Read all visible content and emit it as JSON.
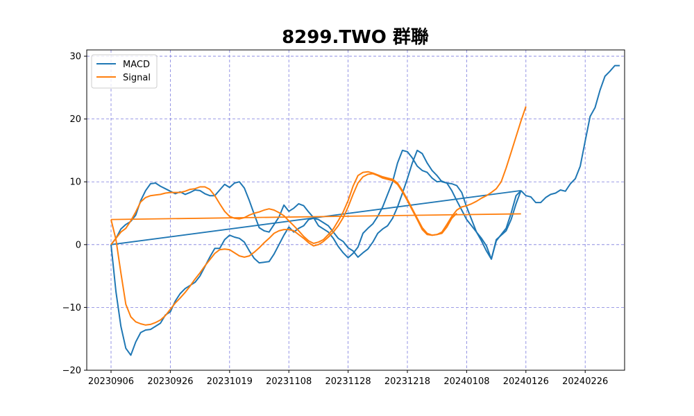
{
  "chart_data": {
    "type": "line",
    "title": "8299.TWO 群聯",
    "xlabel": "",
    "ylabel": "",
    "x_tick_labels": [
      "20230906",
      "20230926",
      "20231019",
      "20231108",
      "20231128",
      "20231218",
      "20240108",
      "20240126",
      "20240226"
    ],
    "y_ticks": [
      30,
      20,
      10,
      0,
      -10,
      -20
    ],
    "y_tick_labels": [
      "30",
      "20",
      "10",
      "0",
      "−10",
      "−20"
    ],
    "xlim": [
      -3,
      85
    ],
    "ylim": [
      -20,
      31
    ],
    "grid": true,
    "legend_position": "top-left",
    "colors": {
      "MACD": "#1f77b4",
      "Signal": "#ff7f0e",
      "grid": "#7b7bde"
    },
    "series": [
      {
        "name": "MACD",
        "x": [
          0,
          1,
          2,
          3,
          4,
          5,
          6,
          7,
          8,
          9,
          10,
          11,
          12,
          13,
          14,
          15,
          16,
          17,
          18,
          19,
          20,
          21,
          22,
          23,
          24,
          25,
          26,
          27,
          28,
          29,
          30,
          31,
          32,
          33,
          34,
          35,
          36,
          37,
          38,
          39,
          40,
          41,
          42,
          43,
          44,
          45,
          46,
          47,
          48,
          49,
          50,
          51,
          52,
          53,
          54,
          55,
          56,
          57,
          58,
          59,
          60,
          61,
          62,
          63,
          64,
          65,
          66,
          67,
          68,
          69,
          70,
          71,
          72,
          73,
          74,
          75,
          76,
          77,
          78,
          79,
          80,
          81,
          82,
          83
        ],
        "y": [
          0,
          -7.5,
          -13.0,
          -16.5,
          -17.6,
          -15.5,
          -14.0,
          -13.6,
          -13.5,
          -13.0,
          -12.5,
          -11.2,
          -10.7,
          -9.0,
          -7.8,
          -7.0,
          -6.5,
          -6.0,
          -5.0,
          -3.5,
          -2.0,
          -0.6,
          -0.6,
          0.8,
          1.5,
          1.2,
          1.0,
          0.4,
          -1.0,
          -2.2,
          -2.9,
          -2.8,
          -2.7,
          -1.5,
          0.0,
          1.5,
          2.8,
          2.0,
          2.6,
          3.0,
          4.0,
          4.2,
          4.0,
          3.5,
          3.0,
          2.0,
          1.0,
          0.5,
          -0.5,
          -1.0,
          -2.0,
          -1.3,
          -0.7,
          0.4,
          1.8,
          2.5,
          3.0,
          4.2,
          6.0,
          8.2,
          10.5,
          13.0,
          15.0,
          14.5,
          13.0,
          11.8,
          11.0,
          10.0,
          9.8,
          9.7,
          9.4,
          8.3,
          6.0,
          4.0,
          2.0,
          0.6,
          -1.0,
          -2.3,
          0.8,
          1.5,
          2.2,
          4.0,
          6.5,
          8.6
        ],
        "x2": [
          0,
          1,
          2,
          3,
          4,
          5,
          6,
          7,
          8,
          9,
          10,
          11,
          12,
          13,
          14,
          15,
          16,
          17,
          18,
          19,
          20,
          21,
          22,
          23,
          24,
          25,
          26,
          27,
          28,
          29,
          30,
          31,
          32,
          33,
          34,
          35,
          36,
          37,
          38,
          39,
          40,
          41,
          42,
          43,
          44,
          45,
          46,
          47,
          48,
          49,
          50,
          51,
          52,
          53,
          54,
          55,
          56,
          57,
          58,
          59,
          60,
          61,
          62,
          63,
          64,
          65,
          66,
          67,
          68,
          69,
          70,
          71,
          72,
          73,
          74,
          75,
          76,
          77,
          78,
          79,
          80,
          81,
          82,
          83
        ],
        "y2_note": "",
        "y2": [
          0,
          1.0,
          2.5,
          3.2,
          3.7,
          4.7,
          7.0,
          8.6,
          9.7,
          9.8,
          9.3,
          8.9,
          8.5,
          8.1,
          8.4,
          8.0,
          8.3,
          8.7,
          8.6,
          8.1,
          7.8,
          7.8,
          8.7,
          9.6,
          9.1,
          9.8,
          10.0,
          9.0,
          7.0,
          4.8,
          2.7,
          2.2,
          2.0,
          3.2,
          4.4,
          6.3,
          5.3,
          5.8,
          6.5,
          6.2,
          5.2,
          4.3,
          3.0,
          2.5,
          2.0,
          1.0,
          -0.3,
          -1.3,
          -2.1,
          -1.4,
          -0.4,
          1.8,
          2.6,
          3.3,
          4.5,
          6.0,
          8.0,
          10.0,
          13.0,
          15.0,
          14.8,
          13.8,
          12.5,
          11.8,
          11.5,
          10.6,
          10.0,
          10.1,
          9.8,
          8.6,
          7.0,
          5.5,
          4.0,
          3.0,
          2.0,
          1.0,
          -0.2,
          -2.3,
          0.6,
          1.6,
          2.6,
          5.0,
          7.8,
          8.6
        ],
        "x3": [
          83,
          84,
          85,
          86,
          87,
          88,
          89,
          90,
          91,
          92,
          93,
          94,
          95,
          96,
          97,
          98,
          99,
          100,
          101,
          102,
          103
        ],
        "y3": [
          8.6,
          7.8,
          7.6,
          6.7,
          6.7,
          7.5,
          8.0,
          8.2,
          8.7,
          8.5,
          9.7,
          10.5,
          12.5,
          16.5,
          20.4,
          21.8,
          24.6,
          26.8,
          27.6,
          28.5,
          28.5
        ]
      },
      {
        "name": "Signal",
        "y_segment_a": [
          4.0,
          0.8,
          -4.5,
          -9.5,
          -11.5,
          -12.3,
          -12.6,
          -12.8,
          -12.7,
          -12.4,
          -12.0,
          -11.3,
          -10.3,
          -9.3,
          -8.5,
          -7.6,
          -6.6,
          -5.5,
          -4.5,
          -3.4,
          -2.4,
          -1.4,
          -0.8,
          -0.7,
          -0.8,
          -1.3,
          -1.8,
          -2.0,
          -1.8,
          -1.2,
          -0.5,
          0.3,
          1.0,
          1.8,
          2.2,
          2.4,
          2.4,
          2.2,
          1.6,
          1.0,
          0.3,
          -0.2,
          0.0,
          0.5,
          1.2,
          2.0,
          3.0,
          4.3,
          6.0,
          8.0,
          9.8,
          10.8,
          11.2,
          11.3,
          11.0,
          10.6,
          10.4,
          10.2,
          9.6,
          8.4,
          7.0,
          5.5,
          4.0,
          2.4,
          1.6,
          1.5,
          1.6,
          1.8,
          2.8,
          4.2,
          5.0
        ],
        "y_segment_b": [
          0,
          1.0,
          2.0,
          2.6,
          3.8,
          5.2,
          6.8,
          7.5,
          7.8,
          7.9,
          8.0,
          8.2,
          8.3,
          8.3,
          8.3,
          8.5,
          8.8,
          8.9,
          9.2,
          9.2,
          8.8,
          7.8,
          6.5,
          5.3,
          4.5,
          4.2,
          4.1,
          4.3,
          4.7,
          5.0,
          5.2,
          5.5,
          5.7,
          5.5,
          5.1,
          4.6,
          3.8,
          3.0,
          2.2,
          1.3,
          0.6,
          0.2,
          0.4,
          0.8,
          1.6,
          2.5,
          3.8,
          5.2,
          7.0,
          9.3,
          11.0,
          11.5,
          11.6,
          11.4,
          11.1,
          10.8,
          10.6,
          10.4,
          9.8,
          8.6,
          7.2,
          5.7,
          4.2,
          2.7,
          1.8,
          1.5,
          1.6,
          2.0,
          3.2,
          4.5,
          5.5,
          6.0,
          6.2,
          6.5,
          6.9,
          7.4,
          7.8,
          8.3,
          8.9,
          10.0,
          12.2,
          14.7,
          17.2,
          19.7,
          22.0
        ],
        "y_connector": [
          [
            0,
            4.0
          ],
          [
            70,
            4.9
          ]
        ]
      }
    ]
  }
}
